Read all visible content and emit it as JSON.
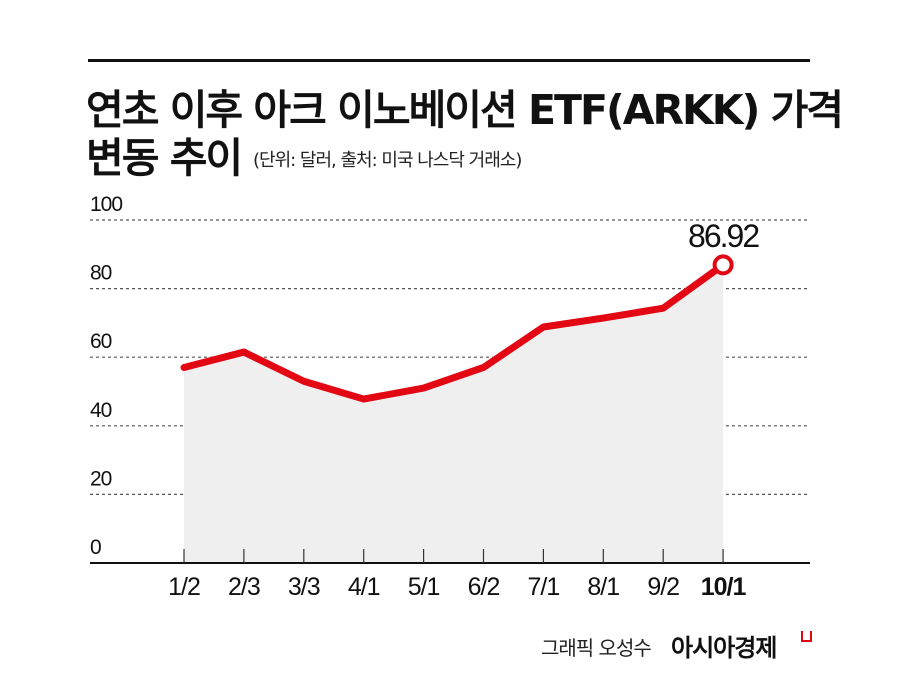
{
  "header": {
    "title_line1": "연초 이후 아크 이노베이션 ETF(ARKK) 가격",
    "title_line2": "변동 추이",
    "subtitle": "(단위: 달러, 출처: 미국 나스닥 거래소)"
  },
  "footer": {
    "credit": "그래픽 오성수",
    "brand": "아시아경제",
    "brand_mark_icon": "red-bracket-mark"
  },
  "colors": {
    "line": "#e30613",
    "area": "#efefef",
    "grid": "#555555",
    "text": "#111111"
  },
  "chart_data": {
    "type": "line",
    "title": "연초 이후 아크 이노베이션 ETF(ARKK) 가격 변동 추이",
    "subtitle": "(단위: 달러, 출처: 미국 나스닥 거래소)",
    "xlabel": "",
    "ylabel": "",
    "categories": [
      "1/2",
      "2/3",
      "3/3",
      "4/1",
      "5/1",
      "6/2",
      "7/1",
      "8/1",
      "9/2",
      "10/1"
    ],
    "series": [
      {
        "name": "ARKK",
        "values": [
          57,
          61.5,
          53,
          47.8,
          51,
          57,
          68.8,
          71.4,
          74.3,
          86.92
        ]
      }
    ],
    "yticks": [
      0,
      20,
      40,
      60,
      80,
      100
    ],
    "ylim": [
      0,
      100
    ],
    "grid": true,
    "area_fill": true,
    "annotations": [
      {
        "x": "10/1",
        "y": 86.92,
        "label": "86.92"
      }
    ],
    "highlight_category": "10/1",
    "legend": null
  }
}
